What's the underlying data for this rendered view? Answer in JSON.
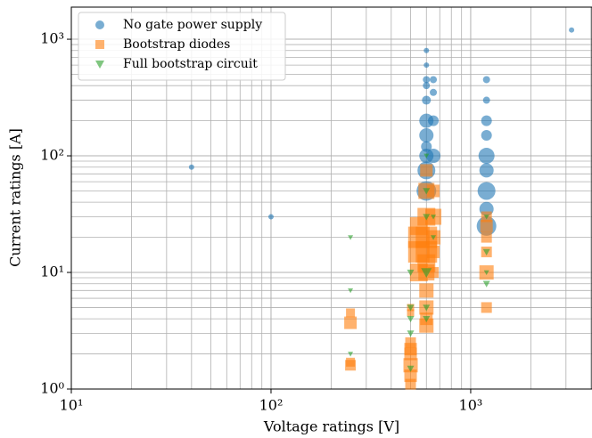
{
  "chart_data": {
    "type": "scatter",
    "xlabel": "Voltage ratings [V]",
    "ylabel": "Current ratings [A]",
    "xscale": "log",
    "yscale": "log",
    "grid": true,
    "legend": "upper left",
    "xlim": [
      10,
      4050
    ],
    "ylim": [
      1,
      1885
    ],
    "xticks": [
      {
        "value": 10,
        "label": "10¹"
      },
      {
        "value": 100,
        "label": "10²"
      },
      {
        "value": 1000,
        "label": "10³"
      }
    ],
    "yticks": [
      {
        "value": 1,
        "label": "10⁰"
      },
      {
        "value": 10,
        "label": "10¹"
      },
      {
        "value": 100,
        "label": "10²"
      },
      {
        "value": 1000,
        "label": "10³"
      }
    ],
    "xminor_ticks": [
      20,
      30,
      40,
      50,
      60,
      70,
      80,
      90,
      200,
      300,
      400,
      500,
      600,
      700,
      800,
      900,
      2000,
      3000,
      4000
    ],
    "yminor_ticks": [
      2,
      3,
      4,
      5,
      6,
      7,
      8,
      9,
      20,
      30,
      40,
      50,
      60,
      70,
      80,
      90,
      200,
      300,
      400,
      500,
      600,
      700,
      800,
      900
    ],
    "series": [
      {
        "name": "No gate power supply",
        "color": "#1f77b4",
        "marker": "circle",
        "x": [
          40,
          100,
          3200,
          600,
          600,
          600,
          600,
          600,
          600,
          600,
          600,
          600,
          600,
          600,
          650,
          650,
          650,
          650,
          1200,
          1200,
          1200,
          1200,
          1200,
          1200,
          1200,
          1200,
          1200
        ],
        "values": [
          80,
          30,
          1200,
          800,
          600,
          450,
          400,
          300,
          200,
          150,
          120,
          100,
          75,
          50,
          450,
          350,
          200,
          100,
          450,
          300,
          200,
          150,
          100,
          75,
          50,
          35,
          25
        ],
        "sizes": [
          3,
          3,
          3,
          3,
          3,
          4,
          4,
          5,
          8,
          8,
          6,
          8,
          10,
          11,
          4,
          4,
          6,
          8,
          4,
          4,
          6,
          6,
          9,
          8,
          10,
          8,
          11
        ]
      },
      {
        "name": "Bootstrap diodes",
        "color": "#ff7f0e",
        "marker": "square",
        "x": [
          250,
          250,
          250,
          250,
          500,
          500,
          500,
          500,
          500,
          500,
          500,
          500,
          550,
          550,
          550,
          550,
          600,
          600,
          600,
          600,
          600,
          600,
          600,
          600,
          600,
          600,
          600,
          650,
          650,
          650,
          650,
          650,
          1200,
          1200,
          1200,
          1200,
          1200,
          1200
        ],
        "values": [
          4.5,
          3.7,
          1.7,
          1.6,
          5,
          4.5,
          2.5,
          2.2,
          2,
          1.6,
          1.3,
          1.1,
          25,
          20,
          15,
          10,
          75,
          50,
          30,
          20,
          15,
          12,
          10,
          7,
          5,
          4,
          3.5,
          50,
          30,
          20,
          15,
          10,
          30,
          25,
          20,
          15,
          10,
          5
        ],
        "sizes": [
          5,
          7,
          5,
          6,
          4,
          4,
          6,
          7,
          7,
          8,
          7,
          6,
          10,
          12,
          12,
          10,
          7,
          9,
          10,
          12,
          12,
          10,
          9,
          8,
          8,
          7,
          8,
          7,
          9,
          8,
          7,
          6,
          6,
          7,
          6,
          6,
          8,
          6
        ]
      },
      {
        "name": "Full bootstrap circuit",
        "color": "#2ca02c",
        "marker": "triangle-down",
        "x": [
          250,
          250,
          250,
          500,
          500,
          500,
          500,
          500,
          600,
          600,
          600,
          600,
          600,
          600,
          650,
          650,
          1200,
          1200,
          1200,
          1200
        ],
        "values": [
          20,
          7,
          2,
          10,
          5,
          4,
          3,
          1.5,
          100,
          50,
          30,
          10,
          5,
          4,
          30,
          20,
          30,
          15,
          10,
          8
        ],
        "sizes": [
          3,
          3,
          3,
          4,
          4,
          4,
          4,
          4,
          3,
          4,
          4,
          6,
          4,
          4,
          3,
          3,
          3,
          4,
          3,
          4
        ]
      }
    ]
  }
}
